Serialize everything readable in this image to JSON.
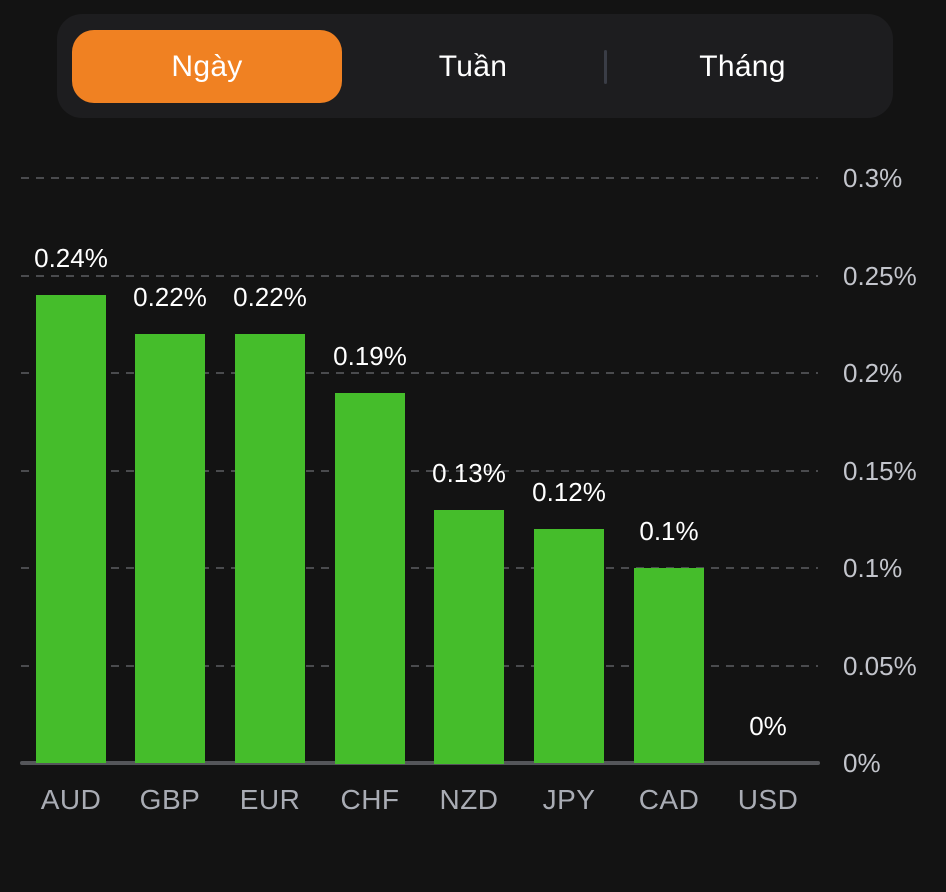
{
  "tabs": {
    "items": [
      {
        "label": "Ngày",
        "active": true
      },
      {
        "label": "Tuần",
        "active": false
      },
      {
        "label": "Tháng",
        "active": false
      }
    ]
  },
  "colors": {
    "page_background": "#131313",
    "tabbar_background": "#1D1D1F",
    "active_tab_orange": "#F08122",
    "bar_green": "#45BD2B",
    "gridline_gray": "#4A4B4E",
    "axis_gray": "#55565A",
    "value_label_white": "#FFFFFF",
    "y_tick_gray": "#C3C5CC",
    "x_tick_gray": "#A9ACB4"
  },
  "chart_data": {
    "type": "bar",
    "title": "",
    "xlabel": "",
    "ylabel": "",
    "categories": [
      "AUD",
      "GBP",
      "EUR",
      "CHF",
      "NZD",
      "JPY",
      "CAD",
      "USD"
    ],
    "values": [
      0.24,
      0.22,
      0.22,
      0.19,
      0.13,
      0.12,
      0.1,
      0
    ],
    "value_labels": [
      "0.24%",
      "0.22%",
      "0.22%",
      "0.19%",
      "0.13%",
      "0.12%",
      "0.1%",
      "0%"
    ],
    "ylim": [
      0,
      0.3
    ],
    "y_ticks": [
      {
        "value": 0.3,
        "label": "0.3%"
      },
      {
        "value": 0.25,
        "label": "0.25%"
      },
      {
        "value": 0.2,
        "label": "0.2%"
      },
      {
        "value": 0.15,
        "label": "0.15%"
      },
      {
        "value": 0.1,
        "label": "0.1%"
      },
      {
        "value": 0.05,
        "label": "0.05%"
      },
      {
        "value": 0,
        "label": "0%"
      }
    ],
    "grid": "horizontal dashed",
    "legend": "none",
    "y_axis_position": "right",
    "bar_color": "#45BD2B"
  }
}
